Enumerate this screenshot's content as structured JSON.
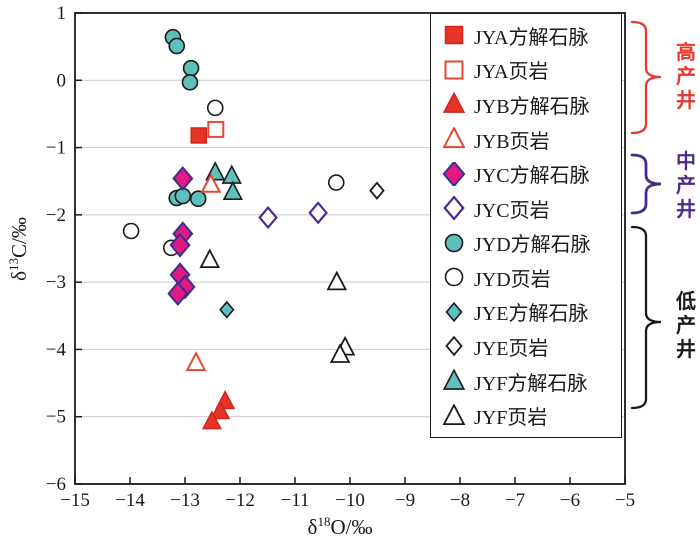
{
  "chart_data": {
    "type": "scatter",
    "title": "",
    "xlabel": {
      "d": "δ",
      "sup": "18",
      "rest": "O/‰"
    },
    "ylabel": {
      "d": "δ",
      "sup": "13",
      "rest": "C/‰"
    },
    "xlim": [
      -15,
      -5
    ],
    "ylim": [
      -6,
      1
    ],
    "xticks": [
      -15,
      -14,
      -13,
      -12,
      -11,
      -10,
      -9,
      -8,
      -7,
      -6,
      -5
    ],
    "xtick_labels": [
      "−15",
      "−14",
      "−13",
      "−12",
      "−11",
      "−10",
      "−9",
      "−8",
      "−7",
      "−6",
      "−5"
    ],
    "yticks": [
      1,
      0,
      -1,
      -2,
      -3,
      -4,
      -5,
      -6
    ],
    "ytick_labels": [
      "1",
      "0",
      "−1",
      "−2",
      "−3",
      "−4",
      "−5",
      "−6"
    ],
    "grid": "horizontal-only",
    "grid_color": "#c9c9c9",
    "legend_position": "inside-top-right",
    "series": [
      {
        "key": "jya-calcite",
        "label": "JYA方解石脉",
        "marker": "square",
        "fill": "#e73328",
        "stroke": "#cf261d",
        "strokeWidth": 1.5,
        "size": 15,
        "z": 5,
        "points": [
          [
            -12.75,
            -0.82
          ]
        ]
      },
      {
        "key": "jya-shale",
        "label": "JYA页岩",
        "marker": "square",
        "fill": "#ffffff",
        "stroke": "#e8472f",
        "strokeWidth": 2,
        "size": 15,
        "z": 6,
        "points": [
          [
            -12.44,
            -0.73
          ]
        ]
      },
      {
        "key": "jyb-calcite",
        "label": "JYB方解石脉",
        "marker": "triangle",
        "fill": "#e73328",
        "stroke": "#cf261d",
        "strokeWidth": 1.5,
        "size": 16,
        "z": 12,
        "points": [
          [
            -12.27,
            -4.77
          ],
          [
            -12.36,
            -4.92
          ],
          [
            -12.51,
            -5.07
          ]
        ]
      },
      {
        "key": "jyb-shale",
        "label": "JYB页岩",
        "marker": "triangle",
        "fill": "#ffffff",
        "stroke": "#e8472f",
        "strokeWidth": 2,
        "size": 16,
        "z": 4,
        "points": [
          [
            -12.53,
            -1.55
          ],
          [
            -12.8,
            -4.2
          ]
        ]
      },
      {
        "key": "jyc-calcite",
        "label": "JYC方解石脉",
        "marker": "diamond",
        "fill": "#e01a82",
        "stroke": "#3b2d8f",
        "strokeWidth": 2,
        "size": 21,
        "z": 7,
        "points": [
          [
            -13.04,
            -1.46
          ],
          [
            -13.04,
            -2.28
          ],
          [
            -13.09,
            -2.45
          ],
          [
            -13.09,
            -2.89
          ],
          [
            -13.0,
            -3.07
          ],
          [
            -13.13,
            -3.17
          ]
        ]
      },
      {
        "key": "jyc-shale",
        "label": "JYC页岩",
        "marker": "diamond",
        "fill": "#ffffff",
        "stroke": "#4b2c8e",
        "strokeWidth": 2.2,
        "size": 19,
        "z": 8,
        "points": [
          [
            -11.49,
            -2.04
          ],
          [
            -10.58,
            -1.97
          ]
        ]
      },
      {
        "key": "jyd-calcite",
        "label": "JYD方解石脉",
        "marker": "circle",
        "fill": "#5fbfba",
        "stroke": "#1a1a1a",
        "strokeWidth": 1.6,
        "size": 15,
        "z": 2,
        "points": [
          [
            -13.22,
            0.64
          ],
          [
            -13.15,
            0.51
          ],
          [
            -12.89,
            0.18
          ],
          [
            -12.91,
            -0.03
          ],
          [
            -13.15,
            -1.75
          ],
          [
            -13.04,
            -1.72
          ],
          [
            -12.76,
            -1.76
          ]
        ]
      },
      {
        "key": "jyd-shale",
        "label": "JYD页岩",
        "marker": "circle",
        "fill": "#ffffff",
        "stroke": "#1a1a1a",
        "strokeWidth": 1.6,
        "size": 15,
        "z": 1,
        "points": [
          [
            -12.45,
            -0.41
          ],
          [
            -10.25,
            -1.52
          ],
          [
            -13.98,
            -2.24
          ],
          [
            -13.25,
            -2.49
          ]
        ]
      },
      {
        "key": "jye-calcite",
        "label": "JYE方解石脉",
        "marker": "diamond",
        "fill": "#5fbfba",
        "stroke": "#1a1a1a",
        "strokeWidth": 1.6,
        "size": 15,
        "z": 9,
        "points": [
          [
            -12.24,
            -3.41
          ]
        ]
      },
      {
        "key": "jye-shale",
        "label": "JYE页岩",
        "marker": "diamond",
        "fill": "#ffffff",
        "stroke": "#1a1a1a",
        "strokeWidth": 1.8,
        "size": 15,
        "z": 10,
        "points": [
          [
            -9.51,
            -1.64
          ]
        ]
      },
      {
        "key": "jyf-calcite",
        "label": "JYF方解石脉",
        "marker": "triangle",
        "fill": "#5fbfba",
        "stroke": "#1a1a1a",
        "strokeWidth": 1.6,
        "size": 16,
        "z": 3,
        "points": [
          [
            -12.45,
            -1.37
          ],
          [
            -12.15,
            -1.42
          ],
          [
            -12.13,
            -1.66
          ]
        ]
      },
      {
        "key": "jyf-shale",
        "label": "JYF页岩",
        "marker": "triangle",
        "fill": "#ffffff",
        "stroke": "#1a1a1a",
        "strokeWidth": 1.8,
        "size": 16,
        "z": 11,
        "points": [
          [
            -12.55,
            -2.67
          ],
          [
            -10.24,
            -3.0
          ],
          [
            -10.09,
            -3.97
          ],
          [
            -10.18,
            -4.08
          ]
        ]
      }
    ],
    "groups": [
      {
        "label": "高产井",
        "chars": [
          "高",
          "产",
          "井"
        ],
        "color": "#e8382d",
        "covers": "JYA, JYB"
      },
      {
        "label": "中产井",
        "chars": [
          "中",
          "产",
          "井"
        ],
        "color": "#4b2c8e",
        "covers": "JYC"
      },
      {
        "label": "低产井",
        "chars": [
          "低",
          "产",
          "井"
        ],
        "color": "#1a1a1a",
        "covers": "JYD, JYE, JYF"
      }
    ]
  }
}
